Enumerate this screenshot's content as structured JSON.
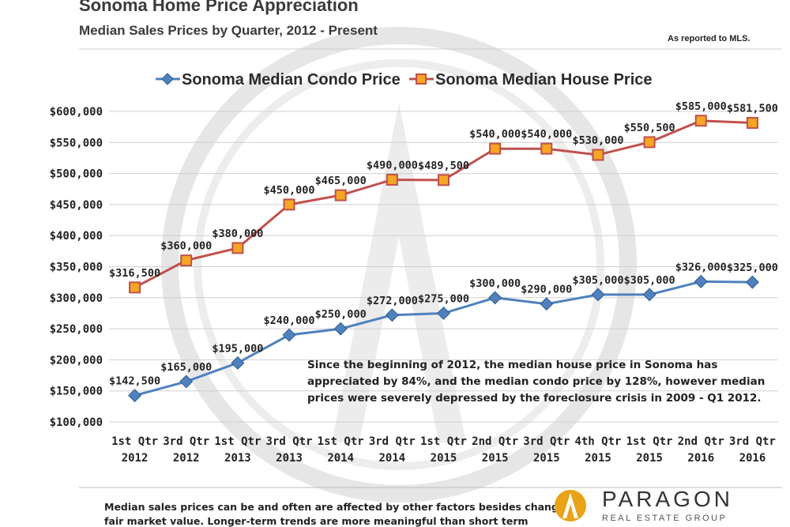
{
  "header": {
    "title": "Sonoma Home Price Appreciation",
    "subtitle": "Median Sales Prices by Quarter, 2012 - Present",
    "source_note": "As reported to MLS."
  },
  "colors": {
    "condo": "#4f81bd",
    "house": "#c0504d",
    "house_marker": "#f5a623",
    "grid": "#d0d0d0",
    "watermark": "#e6e6e6",
    "logo": "#e8a317"
  },
  "chart_data": {
    "type": "line",
    "categories": [
      "1st Qtr 2012",
      "3rd Qtr 2012",
      "1st Qtr 2013",
      "3rd Qtr 2013",
      "1st Qtr 2014",
      "3rd Qtr 2014",
      "1st Qtr 2015",
      "2nd Qtr 2015",
      "3rd Qtr 2015",
      "4th Qtr 2015",
      "1st Qtr 2015",
      "2nd Qtr 2016",
      "3rd Qtr 2016"
    ],
    "category_lines": [
      [
        "1st Qtr",
        "2012"
      ],
      [
        "3rd Qtr",
        "2012"
      ],
      [
        "1st Qtr",
        "2013"
      ],
      [
        "3rd Qtr",
        "2013"
      ],
      [
        "1st Qtr",
        "2014"
      ],
      [
        "3rd Qtr",
        "2014"
      ],
      [
        "1st Qtr",
        "2015"
      ],
      [
        "2nd Qtr",
        "2015"
      ],
      [
        "3rd Qtr",
        "2015"
      ],
      [
        "4th Qtr",
        "2015"
      ],
      [
        "1st Qtr",
        "2015"
      ],
      [
        "2nd Qtr",
        "2016"
      ],
      [
        "3rd Qtr",
        "2016"
      ]
    ],
    "series": [
      {
        "name": "Sonoma Median Condo Price",
        "values": [
          142500,
          165000,
          195000,
          240000,
          250000,
          272000,
          275000,
          300000,
          290000,
          305000,
          305000,
          326000,
          325000
        ],
        "labels": [
          "$142,500",
          "$165,000",
          "$195,000",
          "$240,000",
          "$250,000",
          "$272,000",
          "$275,000",
          "$300,000",
          "$290,000",
          "$305,000",
          "$305,000",
          "$326,000",
          "$325,000"
        ]
      },
      {
        "name": "Sonoma Median House Price",
        "values": [
          316500,
          360000,
          380000,
          450000,
          465000,
          490000,
          489500,
          540000,
          540000,
          530000,
          550500,
          585000,
          581500
        ],
        "labels": [
          "$316,500",
          "$360,000",
          "$380,000",
          "$450,000",
          "$465,000",
          "$490,000",
          "$489,500",
          "$540,000",
          "$540,000",
          "$530,000",
          "$550,500",
          "$585,000",
          "$581,500"
        ]
      }
    ],
    "ylim": [
      100000,
      600000
    ],
    "yticks": [
      "$100,000",
      "$150,000",
      "$200,000",
      "$250,000",
      "$300,000",
      "$350,000",
      "$400,000",
      "$450,000",
      "$500,000",
      "$550,000",
      "$600,000"
    ],
    "ytick_values": [
      100000,
      150000,
      200000,
      250000,
      300000,
      350000,
      400000,
      450000,
      500000,
      550000,
      600000
    ],
    "grid": true,
    "legend": "top-center",
    "annotation": [
      "Since the beginning of 2012, the median house price in Sonoma has",
      "appreciated by 84%, and the median condo price by 128%, however median",
      "prices were severely depressed by the foreclosure crisis in 2009 - Q1 2012."
    ]
  },
  "footer": {
    "note_lines": [
      "Median sales prices can be and often are affected by other factors besides changes in",
      "fair market value. Longer-term trends are more meaningful than short term"
    ],
    "brand_name": "PARAGON",
    "brand_tagline": "REAL ESTATE GROUP"
  }
}
